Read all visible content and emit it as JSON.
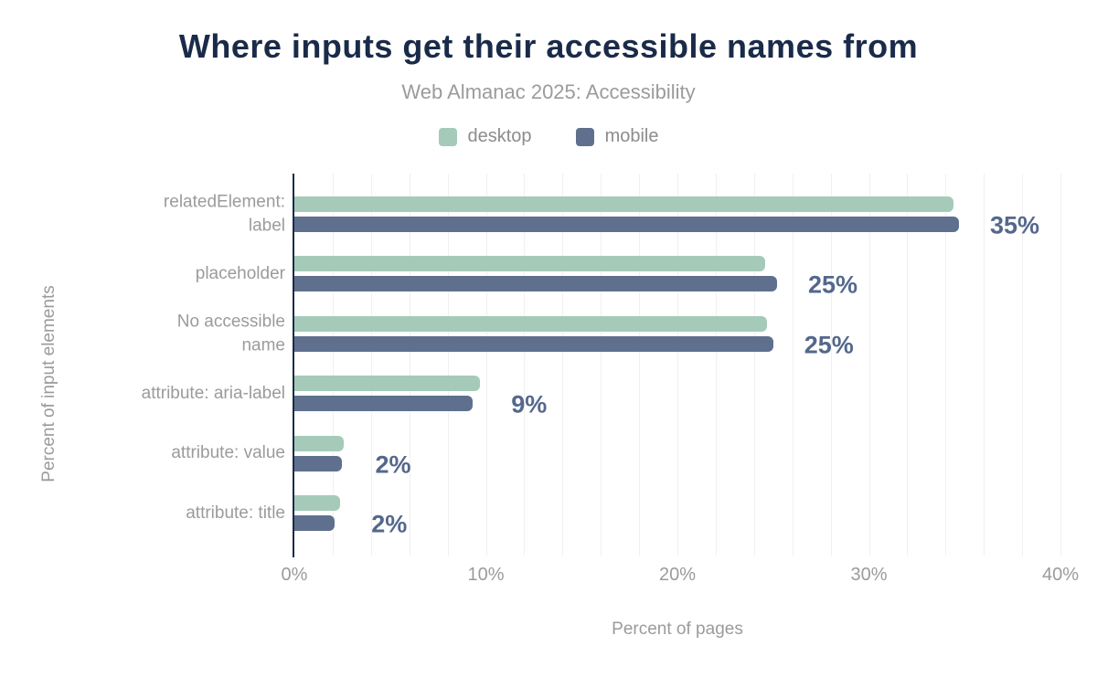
{
  "chart_data": {
    "type": "bar",
    "orientation": "horizontal",
    "title": "Where inputs get their accessible names from",
    "subtitle": "Web Almanac 2025: Accessibility",
    "categories": [
      "relatedElement:\nlabel",
      "placeholder",
      "No accessible\nname",
      "attribute: aria-label",
      "attribute: value",
      "attribute: title"
    ],
    "series": [
      {
        "name": "desktop",
        "color": "#a6cab9",
        "values": [
          34.4,
          24.6,
          24.7,
          9.7,
          2.6,
          2.4
        ]
      },
      {
        "name": "mobile",
        "color": "#5e708e",
        "values": [
          34.7,
          25.2,
          25.0,
          9.3,
          2.5,
          2.1
        ]
      }
    ],
    "value_labels": [
      "35%",
      "25%",
      "25%",
      "9%",
      "2%",
      "2%"
    ],
    "xlabel": "Percent of pages",
    "ylabel": "Percent of input elements",
    "xlim": [
      0,
      40
    ],
    "x_ticks": [
      {
        "value": 0,
        "label": "0%"
      },
      {
        "value": 10,
        "label": "10%"
      },
      {
        "value": 20,
        "label": "20%"
      },
      {
        "value": 30,
        "label": "30%"
      },
      {
        "value": 40,
        "label": "40%"
      }
    ],
    "grid_step": 2,
    "grid": "vertical-only",
    "legend_position": "top"
  },
  "colors": {
    "title": "#1a2b49",
    "muted_text": "#9b9b9b",
    "legend_text": "#8c8c8c",
    "desktop": "#a6cab9",
    "mobile": "#5e708e",
    "value_label": "#54688c",
    "grid": "#f0f0f0",
    "axis": "#1a2b49",
    "background": "#ffffff"
  }
}
